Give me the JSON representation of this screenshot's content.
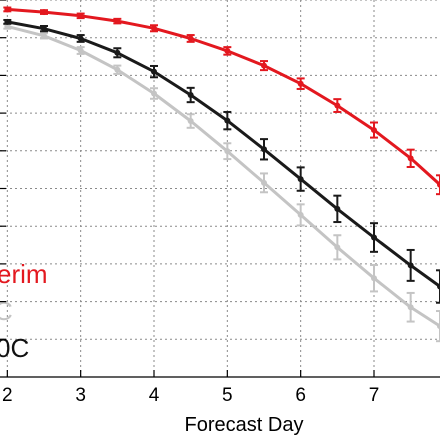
{
  "chart_data": {
    "type": "line",
    "title": "",
    "xlabel": "Forecast Day",
    "ylabel": "",
    "xlim": [
      1.9,
      7.9
    ],
    "ylim": [
      0.0,
      1.0
    ],
    "x_ticks": [
      2,
      3,
      4,
      5,
      6,
      7
    ],
    "grid": true,
    "grid_style": "dotted",
    "legend_placement": "bottom-left",
    "legend_entries": [
      "erim",
      "C",
      "0C"
    ],
    "series": [
      {
        "name": "erim",
        "color": "#e3181f",
        "x": [
          2.0,
          2.5,
          3.0,
          3.5,
          4.0,
          4.5,
          5.0,
          5.5,
          6.0,
          6.5,
          7.0,
          7.5,
          7.9
        ],
        "y": [
          0.975,
          0.968,
          0.958,
          0.944,
          0.925,
          0.898,
          0.865,
          0.826,
          0.778,
          0.72,
          0.655,
          0.58,
          0.51
        ],
        "err": [
          0.005,
          0.005,
          0.006,
          0.006,
          0.008,
          0.009,
          0.01,
          0.012,
          0.014,
          0.017,
          0.02,
          0.023,
          0.025
        ]
      },
      {
        "name": "C",
        "color": "#c4c4c4",
        "x": [
          2.0,
          2.5,
          3.0,
          3.5,
          4.0,
          4.5,
          5.0,
          5.5,
          6.0,
          6.5,
          7.0,
          7.5,
          7.9
        ],
        "y": [
          0.93,
          0.905,
          0.866,
          0.815,
          0.752,
          0.679,
          0.599,
          0.515,
          0.43,
          0.344,
          0.262,
          0.185,
          0.135
        ],
        "err": [
          0.006,
          0.007,
          0.009,
          0.011,
          0.014,
          0.018,
          0.021,
          0.025,
          0.028,
          0.032,
          0.035,
          0.038,
          0.04
        ]
      },
      {
        "name": "0C",
        "color": "#1a1a1a",
        "x": [
          2.0,
          2.5,
          3.0,
          3.5,
          4.0,
          4.5,
          5.0,
          5.5,
          6.0,
          6.5,
          7.0,
          7.5,
          7.9
        ],
        "y": [
          0.942,
          0.924,
          0.898,
          0.86,
          0.81,
          0.748,
          0.68,
          0.604,
          0.525,
          0.446,
          0.37,
          0.296,
          0.24
        ],
        "err": [
          0.005,
          0.007,
          0.009,
          0.012,
          0.015,
          0.019,
          0.023,
          0.027,
          0.031,
          0.035,
          0.038,
          0.041,
          0.043
        ]
      }
    ]
  }
}
